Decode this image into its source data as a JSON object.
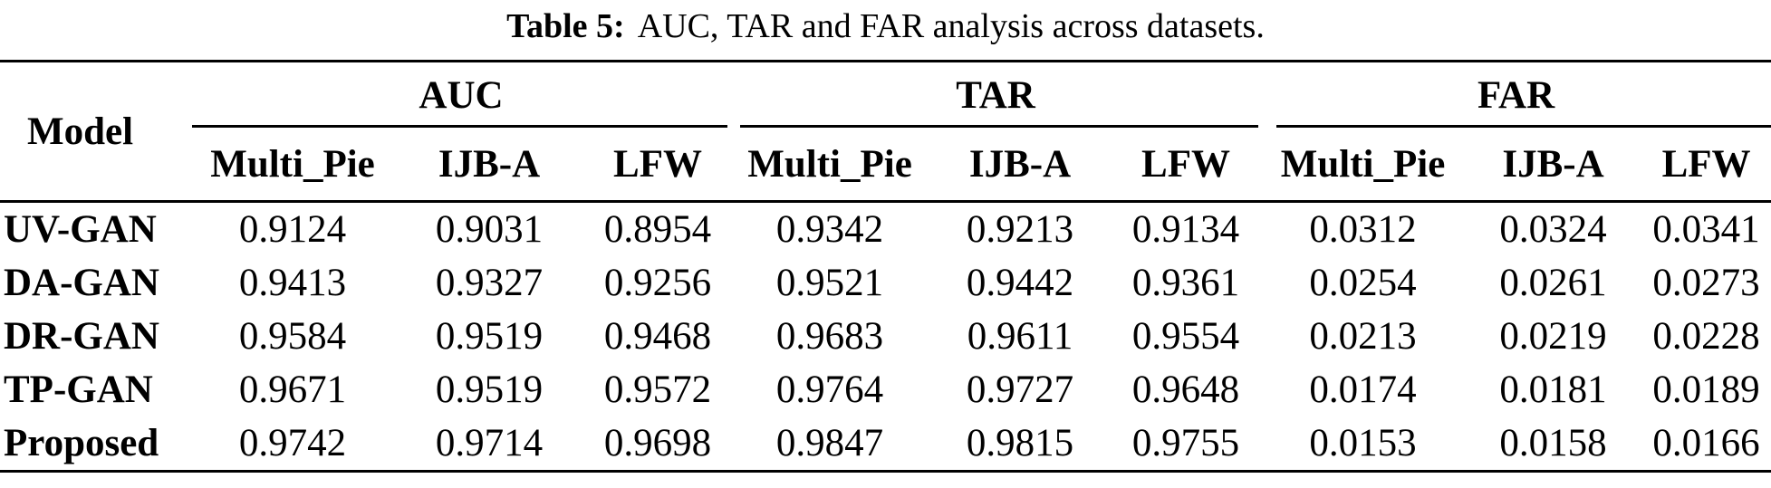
{
  "caption": {
    "label": "Table 5:",
    "text": "AUC, TAR and FAR analysis across datasets."
  },
  "table": {
    "model_header": "Model",
    "groups": [
      {
        "label": "AUC",
        "columns": [
          "Multi_Pie",
          "IJB-A",
          "LFW"
        ]
      },
      {
        "label": "TAR",
        "columns": [
          "Multi_Pie",
          "IJB-A",
          "LFW"
        ]
      },
      {
        "label": "FAR",
        "columns": [
          "Multi_Pie",
          "IJB-A",
          "LFW"
        ]
      }
    ],
    "rows": [
      {
        "model": "UV-GAN",
        "auc": [
          "0.9124",
          "0.9031",
          "0.8954"
        ],
        "tar": [
          "0.9342",
          "0.9213",
          "0.9134"
        ],
        "far": [
          "0.0312",
          "0.0324",
          "0.0341"
        ]
      },
      {
        "model": "DA-GAN",
        "auc": [
          "0.9413",
          "0.9327",
          "0.9256"
        ],
        "tar": [
          "0.9521",
          "0.9442",
          "0.9361"
        ],
        "far": [
          "0.0254",
          "0.0261",
          "0.0273"
        ]
      },
      {
        "model": "DR-GAN",
        "auc": [
          "0.9584",
          "0.9519",
          "0.9468"
        ],
        "tar": [
          "0.9683",
          "0.9611",
          "0.9554"
        ],
        "far": [
          "0.0213",
          "0.0219",
          "0.0228"
        ]
      },
      {
        "model": "TP-GAN",
        "auc": [
          "0.9671",
          "0.9519",
          "0.9572"
        ],
        "tar": [
          "0.9764",
          "0.9727",
          "0.9648"
        ],
        "far": [
          "0.0174",
          "0.0181",
          "0.0189"
        ]
      },
      {
        "model": "Proposed",
        "auc": [
          "0.9742",
          "0.9714",
          "0.9698"
        ],
        "tar": [
          "0.9847",
          "0.9815",
          "0.9755"
        ],
        "far": [
          "0.0153",
          "0.0158",
          "0.0166"
        ]
      }
    ]
  },
  "colors": {
    "text": "#000000",
    "background": "#ffffff",
    "rule": "#000000"
  }
}
